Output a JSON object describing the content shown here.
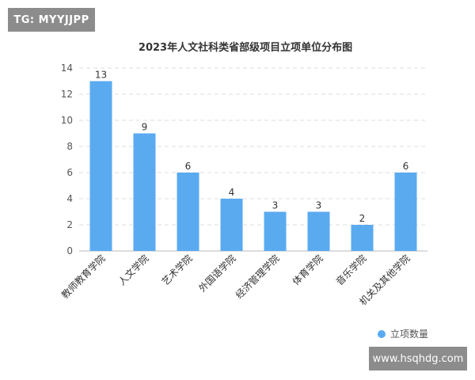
{
  "watermarks": {
    "top_left": "TG: MYYJJPP",
    "bottom_right": "www.hsqhdg.com"
  },
  "chart_data": {
    "type": "bar",
    "title": "2023年人文社科类省部级项目立项单位分布图",
    "categories": [
      "教师教育学院",
      "人文学院",
      "艺术学院",
      "外国语学院",
      "经济管理学院",
      "体育学院",
      "音乐学院",
      "机关及其他学院"
    ],
    "series": [
      {
        "name": "立项数量",
        "values": [
          13,
          9,
          6,
          4,
          3,
          3,
          2,
          6
        ]
      }
    ],
    "ylim": [
      0,
      14
    ],
    "yticks": [
      0,
      2,
      4,
      6,
      8,
      10,
      12,
      14
    ],
    "grid": "horizontal-dashed",
    "legend": "bottom-right",
    "bar_color": "#5aaaf0"
  }
}
